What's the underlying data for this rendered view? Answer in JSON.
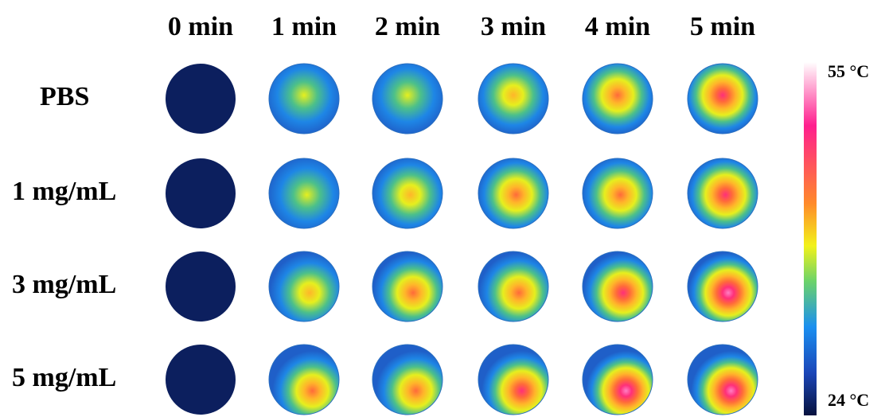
{
  "columns": [
    "0 min",
    "1 min",
    "2 min",
    "3 min",
    "4 min",
    "5 min"
  ],
  "rows": [
    "PBS",
    "1 mg/mL",
    "3 mg/mL",
    "5 mg/mL"
  ],
  "colorbar": {
    "max": "55 °C",
    "min": "24 °C"
  }
}
